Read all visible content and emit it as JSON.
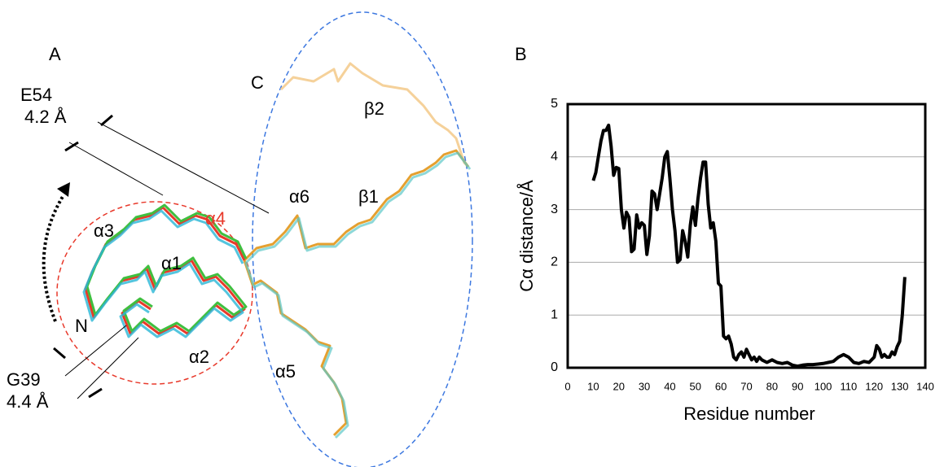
{
  "panel_a": {
    "label": "A",
    "annotations": {
      "e54": "E54",
      "e54_dist": "4.2 Å",
      "g39": "G39",
      "g39_dist": "4.4 Å",
      "c_term": "C",
      "n_term": "N",
      "b2": "β2",
      "b1": "β1",
      "a6": "α6",
      "a4": "α4",
      "a3": "α3",
      "a1": "α1",
      "a2": "α2",
      "a5": "α5"
    }
  },
  "chart_data": {
    "type": "line",
    "panel_label": "B",
    "xlabel": "Residue number",
    "ylabel": "Cα distance/Å",
    "color": "#000000",
    "grid": true,
    "xlim": [
      0,
      140
    ],
    "xticks": [
      0,
      10,
      20,
      30,
      40,
      50,
      60,
      70,
      80,
      90,
      100,
      110,
      120,
      130,
      140
    ],
    "ylim": [
      0,
      5
    ],
    "yticks": [
      0,
      1,
      2,
      3,
      4,
      5
    ],
    "x": [
      10,
      11,
      12,
      13,
      14,
      15,
      16,
      17,
      18,
      19,
      20,
      21,
      22,
      23,
      24,
      25,
      26,
      27,
      28,
      29,
      30,
      31,
      32,
      33,
      34,
      35,
      36,
      37,
      38,
      39,
      40,
      41,
      42,
      43,
      44,
      45,
      46,
      47,
      48,
      49,
      50,
      51,
      52,
      53,
      54,
      55,
      56,
      57,
      58,
      59,
      60,
      61,
      62,
      63,
      64,
      65,
      66,
      67,
      68,
      69,
      70,
      71,
      72,
      73,
      74,
      75,
      76,
      78,
      80,
      82,
      84,
      86,
      88,
      90,
      92,
      94,
      96,
      98,
      100,
      102,
      104,
      106,
      108,
      110,
      112,
      114,
      116,
      118,
      120,
      121,
      122,
      123,
      124,
      125,
      126,
      127,
      128,
      129,
      130,
      131,
      132
    ],
    "values": [
      3.55,
      3.7,
      4.0,
      4.3,
      4.5,
      4.5,
      4.6,
      4.2,
      3.65,
      3.8,
      3.78,
      3.0,
      2.65,
      2.95,
      2.85,
      2.2,
      2.25,
      2.9,
      2.65,
      2.75,
      2.7,
      2.15,
      2.5,
      3.35,
      3.3,
      3.0,
      3.3,
      3.6,
      4.0,
      4.1,
      3.6,
      3.0,
      2.6,
      2.0,
      2.05,
      2.6,
      2.4,
      2.1,
      2.7,
      3.05,
      2.7,
      3.2,
      3.6,
      3.9,
      3.9,
      3.1,
      2.65,
      2.75,
      2.4,
      1.6,
      1.55,
      0.6,
      0.55,
      0.6,
      0.45,
      0.2,
      0.15,
      0.25,
      0.3,
      0.2,
      0.35,
      0.25,
      0.15,
      0.2,
      0.12,
      0.2,
      0.15,
      0.1,
      0.15,
      0.1,
      0.08,
      0.1,
      0.05,
      0.03,
      0.05,
      0.06,
      0.06,
      0.07,
      0.08,
      0.1,
      0.12,
      0.2,
      0.25,
      0.2,
      0.1,
      0.08,
      0.12,
      0.1,
      0.2,
      0.42,
      0.35,
      0.2,
      0.25,
      0.2,
      0.2,
      0.3,
      0.25,
      0.4,
      0.5,
      1.0,
      1.72
    ]
  }
}
